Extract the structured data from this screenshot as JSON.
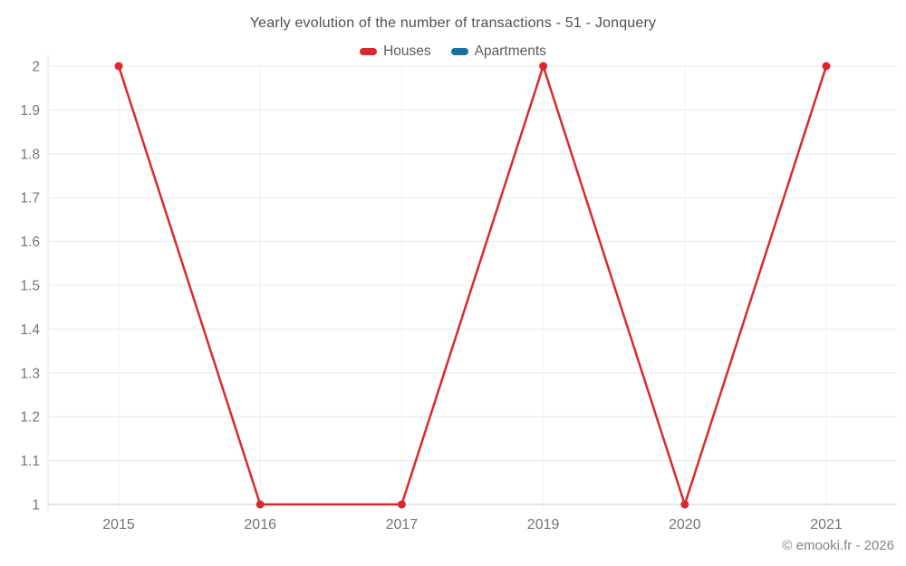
{
  "page": {
    "title": "Yearly evolution of the number of transactions - 51 - Jonquery",
    "attribution": "© emooki.fr - 2026"
  },
  "colors": {
    "background": "#ffffff",
    "houses": "#d9292f",
    "apartments": "#16719f",
    "grid": "#e8e8e8",
    "grid_vertical": "#f0f0f0",
    "axis_bottom": "#cdcdcd",
    "axis_left": "#e3e3e3",
    "tick_label": "#757575",
    "title_text": "#4f4f4f",
    "legend_text": "#5c5c5c",
    "attribution_text": "#848484"
  },
  "chart_data": {
    "type": "line",
    "title": "Yearly evolution of the number of transactions - 51 - Jonquery",
    "categories": [
      "2015",
      "2016",
      "2017",
      "2019",
      "2020",
      "2021"
    ],
    "series": [
      {
        "name": "Houses",
        "color": "#d9292f",
        "values": [
          2,
          1,
          1,
          2,
          1,
          2
        ]
      },
      {
        "name": "Apartments",
        "color": "#16719f",
        "values": []
      }
    ],
    "xlabel": "",
    "ylabel": "",
    "ylim": [
      1,
      2
    ],
    "ytick_step": 0.1,
    "ytick_labels": [
      "1",
      "1.1",
      "1.2",
      "1.3",
      "1.4",
      "1.5",
      "1.6",
      "1.7",
      "1.8",
      "1.9",
      "2"
    ],
    "grid": true,
    "legend_position": "top",
    "marker": "circle"
  }
}
